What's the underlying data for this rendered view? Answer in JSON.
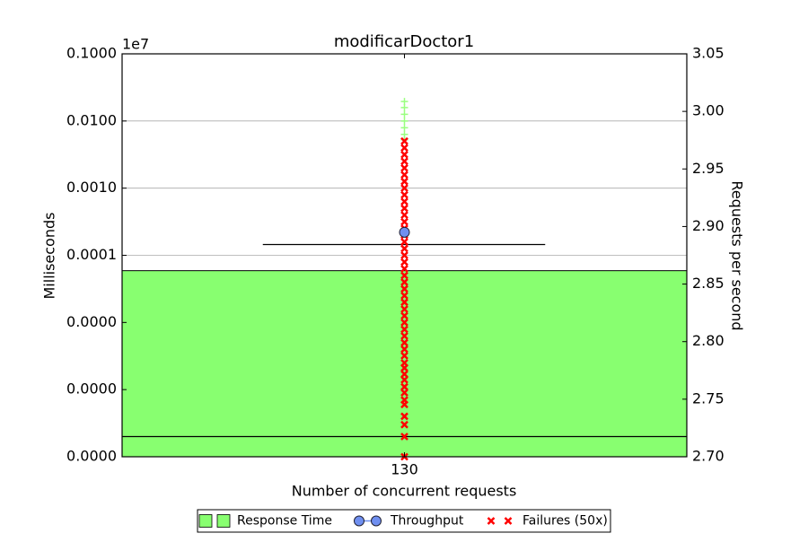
{
  "chart_data": {
    "type": "bar",
    "title": "modificarDoctor1",
    "x_label": "Number of concurrent requests",
    "y_label": "Milliseconds",
    "y2_label": "Requests per second",
    "y_offset_label": "1e7",
    "categories": [
      "130"
    ],
    "log_y": true,
    "grid": true,
    "legend": "bottom",
    "ylim": [
      1,
      1000000
    ],
    "yticks": [
      {
        "value": 1,
        "label": "0.0000"
      },
      {
        "value": 10,
        "label": "0.0000"
      },
      {
        "value": 100,
        "label": "0.0000"
      },
      {
        "value": 1000,
        "label": "0.0001"
      },
      {
        "value": 10000,
        "label": "0.0010"
      },
      {
        "value": 100000,
        "label": "0.0100"
      },
      {
        "value": 1000000,
        "label": "0.1000"
      }
    ],
    "y2lim": [
      2.7,
      3.05
    ],
    "y2ticks": [
      {
        "value": 2.7,
        "label": "2.70"
      },
      2.75,
      {
        "value": 2.8,
        "label": "2.80"
      },
      2.85,
      {
        "value": 2.9,
        "label": "2.90"
      },
      2.95,
      {
        "value": 3.0,
        "label": "3.00"
      },
      3.05
    ],
    "hlines": [
      2,
      1445
    ],
    "series": [
      {
        "name": "Response Time",
        "color": "#88ff70",
        "values": [
          590
        ],
        "samples": [
          [
            52481,
            63096,
            79433,
            100000,
            125893,
            158489,
            195000
          ]
        ]
      },
      {
        "name": "Throughput",
        "color": "#6f8ff0",
        "axis": "y2",
        "values": [
          2.895
        ]
      },
      {
        "name": "Failures (50x)",
        "color": "#ff0000",
        "values": [
          [
            1,
            2,
            3,
            4,
            6,
            7,
            9,
            11,
            14,
            17,
            21,
            25,
            32,
            40,
            50,
            63,
            79,
            100,
            126,
            158,
            200,
            251,
            316,
            398,
            501,
            631,
            794,
            1000,
            1259,
            1585,
            1995,
            2512,
            3162,
            3981,
            5012,
            6310,
            7943,
            10000,
            12589,
            15849,
            19953,
            25119,
            31623,
            39811,
            50119
          ]
        ]
      }
    ]
  }
}
